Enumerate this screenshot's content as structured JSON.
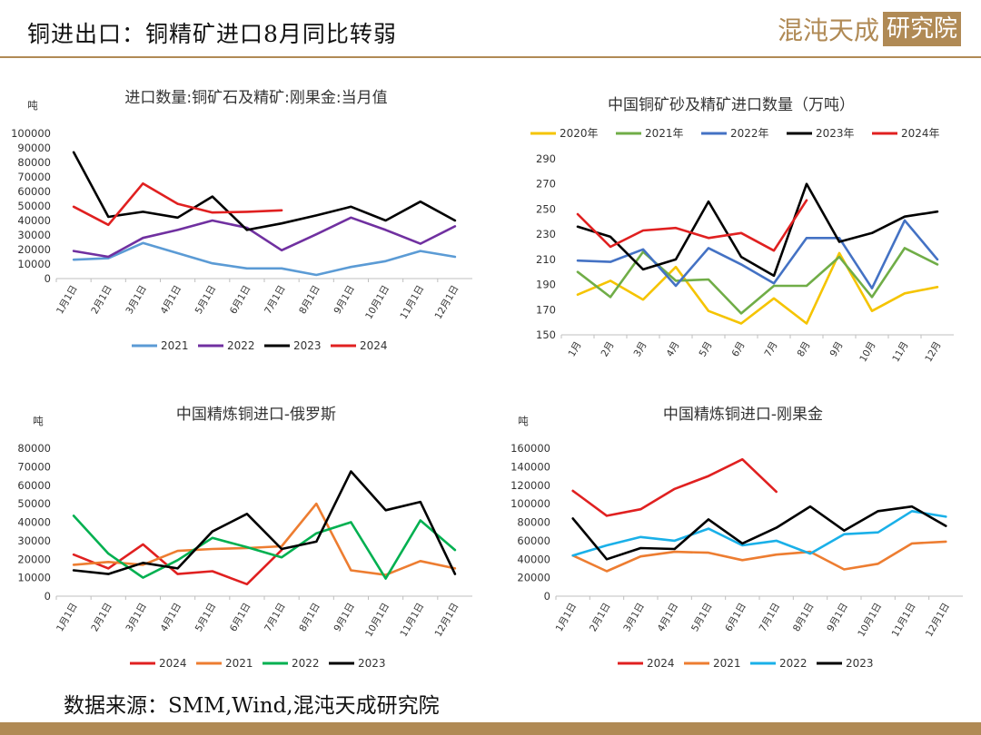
{
  "header": {
    "title": "铜进出口：铜精矿进口8月同比转弱",
    "logo_text": "混沌天成",
    "logo_box": "研究院"
  },
  "footer": {
    "source": "数据来源：SMM,Wind,混沌天成研究院"
  },
  "chart_data": [
    {
      "type": "line",
      "title": "进口数量:铜矿石及精矿:刚果金:当月值",
      "ylabel": "吨",
      "categories": [
        "1月1日",
        "2月1日",
        "3月1日",
        "4月1日",
        "5月1日",
        "6月1日",
        "7月1日",
        "8月1日",
        "9月1日",
        "10月1日",
        "11月1日",
        "12月1日"
      ],
      "ylim": [
        0,
        100000
      ],
      "yticks": [
        "0",
        "10000",
        "20000",
        "30000",
        "40000",
        "50000",
        "60000",
        "70000",
        "80000",
        "90000",
        "100000"
      ],
      "legend_position": "bottom",
      "series": [
        {
          "name": "2021",
          "color": "#5b9bd5",
          "values": [
            13000,
            14000,
            24500,
            17500,
            10500,
            7000,
            7000,
            2500,
            8000,
            12000,
            19000,
            15000
          ]
        },
        {
          "name": "2022",
          "color": "#7030a0",
          "values": [
            19000,
            15000,
            28000,
            33500,
            40000,
            35000,
            19500,
            30500,
            42000,
            33500,
            24000,
            36000
          ]
        },
        {
          "name": "2023",
          "color": "#000000",
          "values": [
            87000,
            42500,
            46000,
            42000,
            56500,
            33500,
            38000,
            43500,
            49500,
            40000,
            53000,
            40000
          ]
        },
        {
          "name": "2024",
          "color": "#e02020",
          "values": [
            49500,
            37000,
            65500,
            51500,
            45500,
            46000,
            47000,
            null,
            null,
            null,
            null,
            null
          ]
        }
      ]
    },
    {
      "type": "line",
      "title": "中国铜矿砂及精矿进口数量（万吨）",
      "categories": [
        "1月",
        "2月",
        "3月",
        "4月",
        "5月",
        "6月",
        "7月",
        "8月",
        "9月",
        "10月",
        "11月",
        "12月"
      ],
      "ylim": [
        150,
        290
      ],
      "yticks": [
        "150",
        "170",
        "190",
        "210",
        "230",
        "250",
        "270",
        "290"
      ],
      "legend_position": "top",
      "series": [
        {
          "name": "2020年",
          "color": "#f5c400",
          "values": [
            182,
            193,
            178,
            204,
            169,
            159,
            179,
            159,
            215,
            169,
            183,
            188
          ]
        },
        {
          "name": "2021年",
          "color": "#70ad47",
          "values": [
            200,
            180,
            216,
            193,
            194,
            167,
            189,
            189,
            212,
            180,
            219,
            206
          ]
        },
        {
          "name": "2022年",
          "color": "#4472c4",
          "values": [
            209,
            208,
            218,
            189,
            219,
            206,
            191,
            227,
            227,
            187,
            241,
            210
          ]
        },
        {
          "name": "2023年",
          "color": "#000000",
          "values": [
            236,
            228,
            202,
            210,
            256,
            212,
            197,
            270,
            224,
            231,
            244,
            248
          ]
        },
        {
          "name": "2024年",
          "color": "#e02020",
          "values": [
            246,
            220,
            233,
            235,
            227,
            231,
            217,
            257,
            null,
            null,
            null,
            null
          ]
        }
      ]
    },
    {
      "type": "line",
      "title": "中国精炼铜进口-俄罗斯",
      "ylabel": "吨",
      "categories": [
        "1月1日",
        "2月1日",
        "3月1日",
        "4月1日",
        "5月1日",
        "6月1日",
        "7月1日",
        "8月1日",
        "9月1日",
        "10月1日",
        "11月1日",
        "12月1日"
      ],
      "ylim": [
        0,
        80000
      ],
      "yticks": [
        "0",
        "10000",
        "20000",
        "30000",
        "40000",
        "50000",
        "60000",
        "70000",
        "80000"
      ],
      "legend_position": "bottom",
      "series": [
        {
          "name": "2024",
          "color": "#e02020",
          "values": [
            22500,
            15000,
            28000,
            12000,
            13500,
            6500,
            25000,
            null,
            null,
            null,
            null,
            null
          ]
        },
        {
          "name": "2021",
          "color": "#ed7d31",
          "values": [
            17000,
            18500,
            17000,
            24500,
            25500,
            26000,
            27000,
            50000,
            14000,
            11500,
            19000,
            15000
          ]
        },
        {
          "name": "2022",
          "color": "#00b050",
          "values": [
            43500,
            23000,
            10000,
            19500,
            31500,
            26500,
            21000,
            34000,
            40000,
            9500,
            41000,
            25000
          ]
        },
        {
          "name": "2023",
          "color": "#000000",
          "values": [
            14000,
            12000,
            18000,
            15000,
            35000,
            44500,
            25500,
            29500,
            67500,
            46500,
            51000,
            12000
          ]
        }
      ]
    },
    {
      "type": "line",
      "title": "中国精炼铜进口-刚果金",
      "ylabel": "吨",
      "categories": [
        "1月1日",
        "2月1日",
        "3月1日",
        "4月1日",
        "5月1日",
        "6月1日",
        "7月1日",
        "8月1日",
        "9月1日",
        "10月1日",
        "11月1日",
        "12月1日"
      ],
      "ylim": [
        0,
        160000
      ],
      "yticks": [
        "0",
        "20000",
        "40000",
        "60000",
        "80000",
        "100000",
        "120000",
        "140000",
        "160000"
      ],
      "legend_position": "bottom",
      "series": [
        {
          "name": "2024",
          "color": "#e02020",
          "values": [
            114000,
            87000,
            94000,
            116000,
            130000,
            148000,
            113000,
            null,
            null,
            null,
            null,
            null
          ]
        },
        {
          "name": "2021",
          "color": "#ed7d31",
          "values": [
            44000,
            27000,
            43000,
            48000,
            47000,
            39000,
            45000,
            48000,
            29000,
            35000,
            57000,
            59000
          ]
        },
        {
          "name": "2022",
          "color": "#1ab0e8",
          "values": [
            44000,
            55000,
            64000,
            60000,
            73000,
            55000,
            60000,
            46000,
            67000,
            69000,
            92000,
            86000
          ]
        },
        {
          "name": "2023",
          "color": "#000000",
          "values": [
            84000,
            40000,
            52000,
            51000,
            83000,
            57000,
            74000,
            97000,
            71000,
            92000,
            97000,
            76000
          ]
        }
      ]
    }
  ]
}
